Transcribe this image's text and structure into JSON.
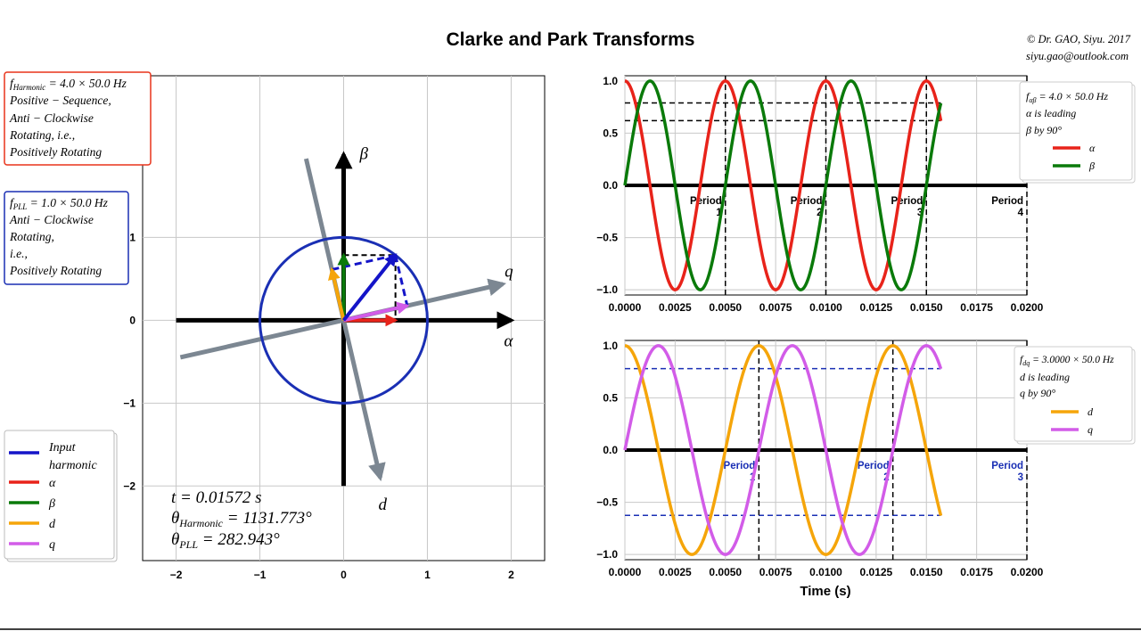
{
  "title": "Clarke and Park Transforms",
  "copyright": "© Dr. GAO, Siyu. 2017",
  "email": "siyu.gao@outlook.com",
  "colors": {
    "input": "#1414c8",
    "alpha": "#e8231a",
    "beta": "#0a7a0a",
    "d": "#f5a50a",
    "q": "#d25ce8",
    "rotating_axes": "#7c8792",
    "harmonic_box": "#e8331a",
    "pll_box": "#1a2fb4"
  },
  "harmonic_box": {
    "lines": [
      "f_Harmonic = 4.0 × 50.0 Hz",
      "Positive − Sequence,",
      "Anti − Clockwise",
      "Rotating, i.e.,",
      "Positively Rotating"
    ]
  },
  "pll_box": {
    "lines": [
      "f_PLL = 1.0 × 50.0 Hz",
      "Anti − Clockwise",
      "Rotating,",
      "i.e.,",
      "Positively Rotating"
    ]
  },
  "vector_legend": [
    {
      "label": "Input harmonic",
      "color_key": "input"
    },
    {
      "label": "α",
      "color_key": "alpha"
    },
    {
      "label": "β",
      "color_key": "beta"
    },
    {
      "label": "d",
      "color_key": "d"
    },
    {
      "label": "q",
      "color_key": "q"
    }
  ],
  "info": {
    "t": "t = 0.01572 s",
    "theta_harmonic": "θ_Harmonic = 1131.773°",
    "theta_pll": "θ_PLL = 282.943°"
  },
  "chart_data": [
    {
      "type": "line",
      "name": "phasor",
      "xlim": [
        -2.4,
        2.4
      ],
      "ylim": [
        -2.9,
        2.95
      ],
      "xticks": [
        -2,
        -1,
        0,
        1,
        2
      ],
      "yticks": [
        -2,
        -1,
        0,
        1
      ],
      "axis_labels": {
        "alpha": "α",
        "beta": "β",
        "d": "d",
        "q": "q"
      },
      "grid": true,
      "unit_circle_radius": 1.0,
      "theta_harmonic_deg": 1131.773,
      "theta_pll_deg": 282.943
    },
    {
      "type": "line",
      "name": "alpha-beta",
      "xlim": [
        0,
        0.02
      ],
      "ylim": [
        -1.05,
        1.05
      ],
      "xticks": [
        "0.0000",
        "0.0025",
        "0.0050",
        "0.0075",
        "0.0100",
        "0.0125",
        "0.0150",
        "0.0175",
        "0.0200"
      ],
      "yticks": [
        "−1.0",
        "−0.5",
        "0.0",
        "0.5",
        "1.0"
      ],
      "grid": true,
      "freq_hz": 200,
      "t_end": 0.01572,
      "series": [
        {
          "name": "α",
          "color_key": "alpha",
          "fn": "cos"
        },
        {
          "name": "β",
          "color_key": "beta",
          "fn": "sin"
        }
      ],
      "period_lines": [
        0.005,
        0.01,
        0.015,
        0.02
      ],
      "period_labels": [
        "Period 1",
        "Period 2",
        "Period 3",
        "Period 4"
      ],
      "hlines": [
        0.79,
        0.62
      ],
      "legend": {
        "lines": [
          "f_αβ = 4.0 × 50.0 Hz",
          "α is leading",
          "β by 90°"
        ],
        "location": "upper right"
      }
    },
    {
      "type": "line",
      "name": "d-q",
      "xlim": [
        0,
        0.02
      ],
      "ylim": [
        -1.05,
        1.05
      ],
      "xticks": [
        "0.0000",
        "0.0025",
        "0.0050",
        "0.0075",
        "0.0100",
        "0.0125",
        "0.0150",
        "0.0175",
        "0.0200"
      ],
      "yticks": [
        "−1.0",
        "−0.5",
        "0.0",
        "0.5",
        "1.0"
      ],
      "xlabel": "Time (s)",
      "grid": true,
      "freq_hz": 150,
      "t_end": 0.01572,
      "series": [
        {
          "name": "d",
          "color_key": "d",
          "fn": "cos"
        },
        {
          "name": "q",
          "color_key": "q",
          "fn": "sin"
        }
      ],
      "period_lines": [
        0.006667,
        0.013333,
        0.02
      ],
      "period_labels": [
        "Period 1",
        "Period 2",
        "Period 3"
      ],
      "hlines": [
        0.78,
        -0.625
      ],
      "legend": {
        "lines": [
          "f_dq = 3.0000 × 50.0 Hz",
          "d is leading",
          "q by 90°"
        ],
        "location": "upper right"
      }
    }
  ]
}
